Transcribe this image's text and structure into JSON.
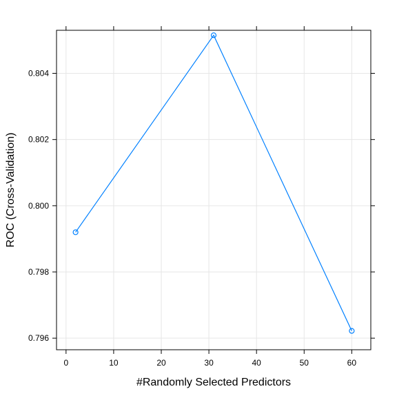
{
  "chart_data": {
    "type": "line",
    "xlabel": "#Randomly Selected Predictors",
    "ylabel": "ROC (Cross-Validation)",
    "xlim": [
      -2,
      64
    ],
    "ylim": [
      0.79565,
      0.8053
    ],
    "x_ticks": [
      0,
      10,
      20,
      30,
      40,
      50,
      60
    ],
    "x_tick_labels": [
      "0",
      "10",
      "20",
      "30",
      "40",
      "50",
      "60"
    ],
    "y_ticks": [
      0.796,
      0.798,
      0.8,
      0.802,
      0.804
    ],
    "y_tick_labels": [
      "0.796",
      "0.798",
      "0.800",
      "0.802",
      "0.804"
    ],
    "grid": true,
    "colors": {
      "series": "#0080ff",
      "grid": "#e6e6e6",
      "frame": "#000000"
    },
    "series": [
      {
        "x": [
          2,
          31,
          60
        ],
        "y": [
          0.7992,
          0.80515,
          0.79622
        ]
      }
    ]
  }
}
